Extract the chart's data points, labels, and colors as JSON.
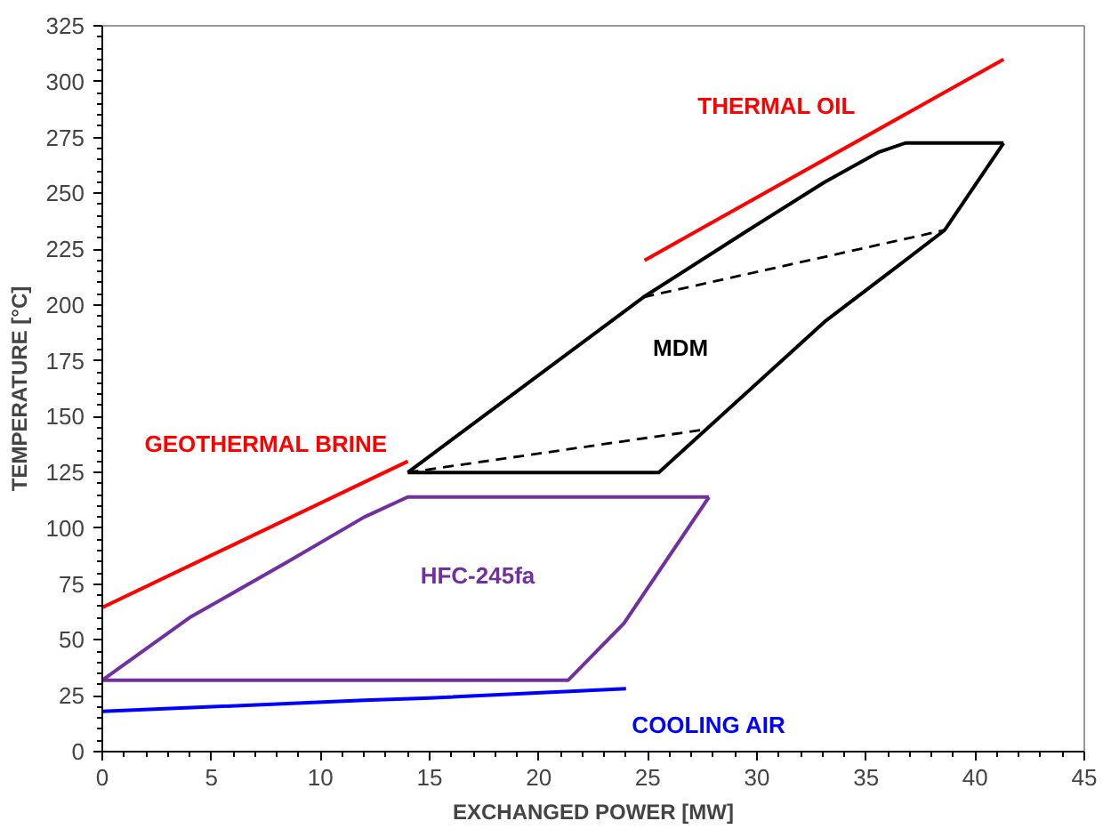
{
  "chart_data": {
    "type": "line",
    "xlabel": "EXCHANGED POWER [MW]",
    "ylabel": "TEMPERATURE [°C]",
    "xlim": [
      0,
      45
    ],
    "ylim": [
      0,
      325
    ],
    "xticks": [
      0,
      5,
      10,
      15,
      20,
      25,
      30,
      35,
      40,
      45
    ],
    "yticks": [
      0,
      25,
      50,
      75,
      100,
      125,
      150,
      175,
      200,
      225,
      250,
      275,
      300,
      325
    ],
    "grid": false,
    "marker": "none",
    "line_style": "solid",
    "series": [
      {
        "name": "GEOTHERMAL BRINE",
        "color": "#ff0000",
        "x": [
          0,
          14
        ],
        "values": [
          64.5,
          130
        ]
      },
      {
        "name": "THERMAL OIL",
        "color": "#ff0000",
        "x": [
          24.85,
          41.3
        ],
        "values": [
          220,
          310
        ]
      },
      {
        "name": "MDM",
        "color": "#000000",
        "x": [
          14,
          25.5,
          33.1,
          36.6,
          38.6,
          41.3
        ],
        "values": [
          125,
          125,
          192.5,
          218.5,
          233.5,
          272.5
        ]
      },
      {
        "color": "#000000",
        "x": [
          14,
          24.8,
          29.6,
          33.1,
          35.6,
          36.8,
          41.3
        ],
        "values": [
          125,
          203.5,
          233.5,
          255,
          268.5,
          272.5,
          272.5
        ]
      },
      {
        "color": "#000000",
        "line_style": "dashed",
        "x": [
          14,
          27.6
        ],
        "values": [
          125,
          144.2
        ]
      },
      {
        "color": "#000000",
        "line_style": "dashed",
        "x": [
          24.8,
          38.6
        ],
        "values": [
          203.5,
          233.5
        ]
      },
      {
        "name": "HFC-245fa",
        "color": "#7030a0",
        "x": [
          0,
          4,
          8.5,
          12,
          14,
          27.8
        ],
        "values": [
          32,
          60,
          85,
          105,
          114,
          114
        ]
      },
      {
        "color": "#7030a0",
        "x": [
          0,
          21.35,
          23.9,
          27.8
        ],
        "values": [
          32,
          32,
          57.4,
          114
        ]
      },
      {
        "name": "COOLING AIR",
        "color": "#0000ff",
        "x": [
          0,
          12,
          15,
          24
        ],
        "values": [
          18,
          23,
          24,
          28.2
        ]
      }
    ]
  }
}
